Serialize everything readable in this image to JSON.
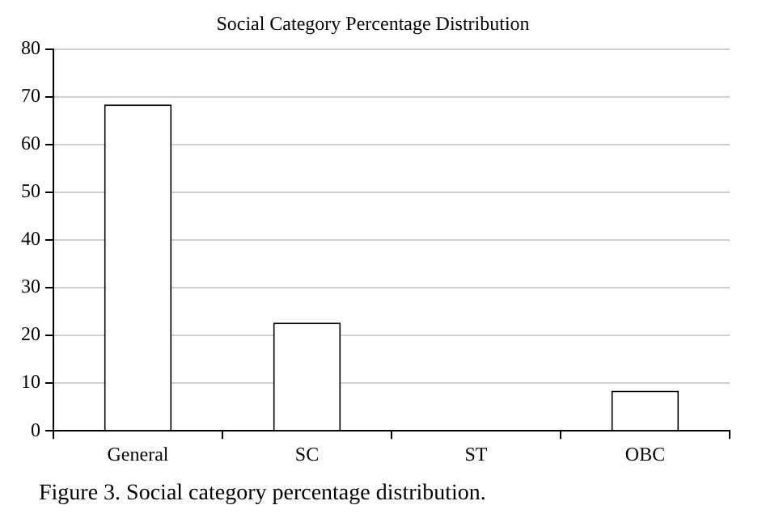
{
  "chart_data": {
    "type": "bar",
    "title": "Social Category Percentage Distribution",
    "categories": [
      "General",
      "SC",
      "ST",
      "OBC"
    ],
    "values": [
      68.4,
      22.7,
      0,
      8.4
    ],
    "color": "#ffffff",
    "ylim": [
      0,
      80
    ],
    "yticks": [
      0,
      10,
      20,
      30,
      40,
      50,
      60,
      70,
      80
    ],
    "grid": "y",
    "legend": false,
    "annotations": [
      "Figure 3. Social category percentage distribution."
    ]
  }
}
